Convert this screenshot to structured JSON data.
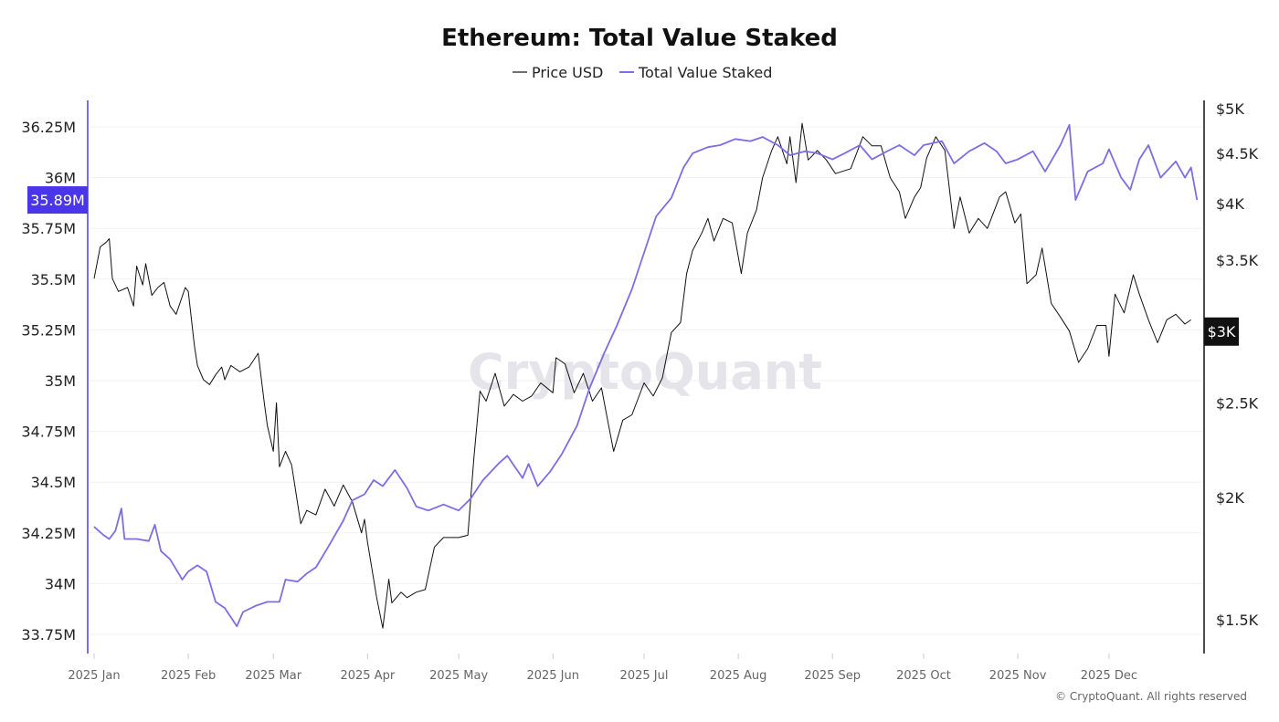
{
  "chart_data": {
    "type": "line",
    "title": "Ethereum: Total Value Staked",
    "legend": {
      "placement": "top-center",
      "entries": [
        "Price USD",
        "Total Value Staked"
      ]
    },
    "grid": true,
    "watermark": "CryptoQuant",
    "copyright": "© CryptoQuant. All rights reserved",
    "x_ticks": [
      "2025 Jan",
      "2025 Feb",
      "2025 Mar",
      "2025 Apr",
      "2025 May",
      "2025 Jun",
      "2025 Jul",
      "2025 Aug",
      "2025 Sep",
      "2025 Oct",
      "2025 Nov",
      "2025 Dec"
    ],
    "x_tick_dates": [
      "2025-01-01",
      "2025-02-01",
      "2025-03-01",
      "2025-04-01",
      "2025-05-01",
      "2025-06-01",
      "2025-07-01",
      "2025-08-01",
      "2025-09-01",
      "2025-10-01",
      "2025-11-01",
      "2025-12-01"
    ],
    "xlim": [
      "2025-01-01",
      "2025-12-31"
    ],
    "left_axis": {
      "unit": "M",
      "ylim": [
        33.7,
        36.4
      ],
      "ticks": [
        33.75,
        34,
        34.25,
        34.5,
        34.75,
        35,
        35.25,
        35.5,
        35.75,
        36,
        36.25
      ],
      "tick_labels": [
        "33.75M",
        "34M",
        "34.25M",
        "34.5M",
        "34.75M",
        "35M",
        "35.25M",
        "35.5M",
        "35.75M",
        "36M",
        "36.25M"
      ],
      "current_label": "35.89M",
      "color": "#7b6ee6",
      "badge_color": "#4a35e8"
    },
    "right_axis": {
      "scale": "log",
      "ylim": [
        1400,
        5200
      ],
      "ticks": [
        1500,
        2000,
        2500,
        3500,
        4000,
        4500,
        5000
      ],
      "tick_labels": [
        "$1.5K",
        "$2K",
        "$2.5K",
        "$3.5K",
        "$4K",
        "$4.5K",
        "$5K"
      ],
      "current_value": 2960,
      "current_label": "$3K",
      "color": "#111111"
    },
    "series": [
      {
        "name": "Price USD",
        "axis": "right",
        "color": "#111111",
        "points": [
          [
            "2025-01-01",
            3350
          ],
          [
            "2025-01-03",
            3610
          ],
          [
            "2025-01-05",
            3650
          ],
          [
            "2025-01-06",
            3680
          ],
          [
            "2025-01-07",
            3350
          ],
          [
            "2025-01-09",
            3250
          ],
          [
            "2025-01-12",
            3280
          ],
          [
            "2025-01-14",
            3140
          ],
          [
            "2025-01-15",
            3450
          ],
          [
            "2025-01-17",
            3300
          ],
          [
            "2025-01-18",
            3470
          ],
          [
            "2025-01-20",
            3220
          ],
          [
            "2025-01-22",
            3280
          ],
          [
            "2025-01-24",
            3320
          ],
          [
            "2025-01-26",
            3140
          ],
          [
            "2025-01-28",
            3080
          ],
          [
            "2025-01-31",
            3280
          ],
          [
            "2025-02-01",
            3250
          ],
          [
            "2025-02-03",
            2860
          ],
          [
            "2025-02-04",
            2730
          ],
          [
            "2025-02-06",
            2640
          ],
          [
            "2025-02-08",
            2610
          ],
          [
            "2025-02-10",
            2670
          ],
          [
            "2025-02-12",
            2720
          ],
          [
            "2025-02-13",
            2640
          ],
          [
            "2025-02-15",
            2730
          ],
          [
            "2025-02-18",
            2690
          ],
          [
            "2025-02-21",
            2720
          ],
          [
            "2025-02-24",
            2810
          ],
          [
            "2025-02-26",
            2500
          ],
          [
            "2025-02-27",
            2370
          ],
          [
            "2025-03-01",
            2230
          ],
          [
            "2025-03-02",
            2500
          ],
          [
            "2025-03-03",
            2150
          ],
          [
            "2025-03-05",
            2230
          ],
          [
            "2025-03-07",
            2160
          ],
          [
            "2025-03-10",
            1880
          ],
          [
            "2025-03-12",
            1940
          ],
          [
            "2025-03-15",
            1920
          ],
          [
            "2025-03-18",
            2040
          ],
          [
            "2025-03-21",
            1960
          ],
          [
            "2025-03-24",
            2060
          ],
          [
            "2025-03-27",
            1980
          ],
          [
            "2025-03-30",
            1840
          ],
          [
            "2025-03-31",
            1900
          ],
          [
            "2025-04-01",
            1800
          ],
          [
            "2025-04-04",
            1580
          ],
          [
            "2025-04-06",
            1470
          ],
          [
            "2025-04-08",
            1650
          ],
          [
            "2025-04-09",
            1560
          ],
          [
            "2025-04-12",
            1600
          ],
          [
            "2025-04-14",
            1580
          ],
          [
            "2025-04-17",
            1600
          ],
          [
            "2025-04-20",
            1610
          ],
          [
            "2025-04-23",
            1780
          ],
          [
            "2025-04-26",
            1820
          ],
          [
            "2025-04-29",
            1820
          ],
          [
            "2025-05-01",
            1820
          ],
          [
            "2025-05-04",
            1830
          ],
          [
            "2025-05-06",
            2200
          ],
          [
            "2025-05-08",
            2570
          ],
          [
            "2025-05-10",
            2510
          ],
          [
            "2025-05-13",
            2680
          ],
          [
            "2025-05-16",
            2480
          ],
          [
            "2025-05-19",
            2550
          ],
          [
            "2025-05-22",
            2510
          ],
          [
            "2025-05-25",
            2540
          ],
          [
            "2025-05-28",
            2620
          ],
          [
            "2025-06-01",
            2560
          ],
          [
            "2025-06-02",
            2780
          ],
          [
            "2025-06-05",
            2740
          ],
          [
            "2025-06-08",
            2560
          ],
          [
            "2025-06-11",
            2680
          ],
          [
            "2025-06-14",
            2510
          ],
          [
            "2025-06-17",
            2590
          ],
          [
            "2025-06-19",
            2400
          ],
          [
            "2025-06-21",
            2230
          ],
          [
            "2025-06-24",
            2400
          ],
          [
            "2025-06-27",
            2430
          ],
          [
            "2025-07-01",
            2620
          ],
          [
            "2025-07-04",
            2540
          ],
          [
            "2025-07-07",
            2650
          ],
          [
            "2025-07-10",
            2950
          ],
          [
            "2025-07-13",
            3020
          ],
          [
            "2025-07-15",
            3390
          ],
          [
            "2025-07-17",
            3580
          ],
          [
            "2025-07-20",
            3730
          ],
          [
            "2025-07-22",
            3860
          ],
          [
            "2025-07-24",
            3660
          ],
          [
            "2025-07-27",
            3860
          ],
          [
            "2025-07-30",
            3820
          ],
          [
            "2025-08-02",
            3390
          ],
          [
            "2025-08-04",
            3730
          ],
          [
            "2025-08-07",
            3940
          ],
          [
            "2025-08-09",
            4250
          ],
          [
            "2025-08-12",
            4530
          ],
          [
            "2025-08-14",
            4680
          ],
          [
            "2025-08-17",
            4390
          ],
          [
            "2025-08-18",
            4680
          ],
          [
            "2025-08-20",
            4200
          ],
          [
            "2025-08-22",
            4830
          ],
          [
            "2025-08-24",
            4430
          ],
          [
            "2025-08-27",
            4530
          ],
          [
            "2025-08-30",
            4430
          ],
          [
            "2025-09-02",
            4290
          ],
          [
            "2025-09-07",
            4340
          ],
          [
            "2025-09-11",
            4680
          ],
          [
            "2025-09-14",
            4580
          ],
          [
            "2025-09-17",
            4580
          ],
          [
            "2025-09-20",
            4250
          ],
          [
            "2025-09-23",
            4110
          ],
          [
            "2025-09-25",
            3860
          ],
          [
            "2025-09-28",
            4060
          ],
          [
            "2025-09-30",
            4150
          ],
          [
            "2025-10-02",
            4450
          ],
          [
            "2025-10-05",
            4680
          ],
          [
            "2025-10-08",
            4530
          ],
          [
            "2025-10-11",
            3770
          ],
          [
            "2025-10-13",
            4060
          ],
          [
            "2025-10-16",
            3730
          ],
          [
            "2025-10-19",
            3860
          ],
          [
            "2025-10-22",
            3770
          ],
          [
            "2025-10-26",
            4060
          ],
          [
            "2025-10-28",
            4110
          ],
          [
            "2025-10-31",
            3820
          ],
          [
            "2025-11-02",
            3900
          ],
          [
            "2025-11-04",
            3310
          ],
          [
            "2025-11-07",
            3380
          ],
          [
            "2025-11-09",
            3600
          ],
          [
            "2025-11-12",
            3160
          ],
          [
            "2025-11-15",
            3060
          ],
          [
            "2025-11-18",
            2960
          ],
          [
            "2025-11-21",
            2750
          ],
          [
            "2025-11-24",
            2840
          ],
          [
            "2025-11-27",
            3000
          ],
          [
            "2025-11-30",
            3000
          ],
          [
            "2025-12-01",
            2790
          ],
          [
            "2025-12-03",
            3230
          ],
          [
            "2025-12-06",
            3090
          ],
          [
            "2025-12-09",
            3380
          ],
          [
            "2025-12-11",
            3230
          ],
          [
            "2025-12-14",
            3040
          ],
          [
            "2025-12-17",
            2880
          ],
          [
            "2025-12-20",
            3040
          ],
          [
            "2025-12-23",
            3080
          ],
          [
            "2025-12-26",
            3010
          ],
          [
            "2025-12-28",
            3040
          ]
        ]
      },
      {
        "name": "Total Value Staked",
        "axis": "left",
        "color": "#7b6ee6",
        "unit": "M",
        "points": [
          [
            "2025-01-01",
            34.28
          ],
          [
            "2025-01-04",
            34.24
          ],
          [
            "2025-01-06",
            34.22
          ],
          [
            "2025-01-08",
            34.26
          ],
          [
            "2025-01-10",
            34.37
          ],
          [
            "2025-01-11",
            34.22
          ],
          [
            "2025-01-15",
            34.22
          ],
          [
            "2025-01-19",
            34.21
          ],
          [
            "2025-01-21",
            34.29
          ],
          [
            "2025-01-23",
            34.16
          ],
          [
            "2025-01-26",
            34.12
          ],
          [
            "2025-01-30",
            34.02
          ],
          [
            "2025-02-01",
            34.06
          ],
          [
            "2025-02-04",
            34.09
          ],
          [
            "2025-02-07",
            34.06
          ],
          [
            "2025-02-10",
            33.91
          ],
          [
            "2025-02-13",
            33.88
          ],
          [
            "2025-02-17",
            33.79
          ],
          [
            "2025-02-19",
            33.86
          ],
          [
            "2025-02-23",
            33.89
          ],
          [
            "2025-02-27",
            33.91
          ],
          [
            "2025-03-03",
            33.91
          ],
          [
            "2025-03-05",
            34.02
          ],
          [
            "2025-03-09",
            34.01
          ],
          [
            "2025-03-12",
            34.05
          ],
          [
            "2025-03-15",
            34.08
          ],
          [
            "2025-03-19",
            34.18
          ],
          [
            "2025-03-24",
            34.31
          ],
          [
            "2025-03-27",
            34.41
          ],
          [
            "2025-03-31",
            34.44
          ],
          [
            "2025-04-03",
            34.51
          ],
          [
            "2025-04-06",
            34.48
          ],
          [
            "2025-04-10",
            34.56
          ],
          [
            "2025-04-14",
            34.47
          ],
          [
            "2025-04-17",
            34.38
          ],
          [
            "2025-04-21",
            34.36
          ],
          [
            "2025-04-26",
            34.39
          ],
          [
            "2025-05-01",
            34.36
          ],
          [
            "2025-05-05",
            34.42
          ],
          [
            "2025-05-09",
            34.51
          ],
          [
            "2025-05-14",
            34.59
          ],
          [
            "2025-05-17",
            34.63
          ],
          [
            "2025-05-22",
            34.52
          ],
          [
            "2025-05-24",
            34.59
          ],
          [
            "2025-05-27",
            34.48
          ],
          [
            "2025-05-31",
            34.55
          ],
          [
            "2025-06-04",
            34.64
          ],
          [
            "2025-06-09",
            34.78
          ],
          [
            "2025-06-13",
            34.96
          ],
          [
            "2025-06-18",
            35.14
          ],
          [
            "2025-06-22",
            35.27
          ],
          [
            "2025-06-27",
            35.45
          ],
          [
            "2025-07-01",
            35.63
          ],
          [
            "2025-07-05",
            35.81
          ],
          [
            "2025-07-10",
            35.9
          ],
          [
            "2025-07-14",
            36.05
          ],
          [
            "2025-07-17",
            36.12
          ],
          [
            "2025-07-22",
            36.15
          ],
          [
            "2025-07-26",
            36.16
          ],
          [
            "2025-07-31",
            36.19
          ],
          [
            "2025-08-05",
            36.18
          ],
          [
            "2025-08-09",
            36.2
          ],
          [
            "2025-08-14",
            36.16
          ],
          [
            "2025-08-18",
            36.11
          ],
          [
            "2025-08-23",
            36.13
          ],
          [
            "2025-08-27",
            36.12
          ],
          [
            "2025-09-01",
            36.09
          ],
          [
            "2025-09-05",
            36.12
          ],
          [
            "2025-09-10",
            36.16
          ],
          [
            "2025-09-14",
            36.09
          ],
          [
            "2025-09-19",
            36.13
          ],
          [
            "2025-09-23",
            36.16
          ],
          [
            "2025-09-28",
            36.11
          ],
          [
            "2025-10-01",
            36.16
          ],
          [
            "2025-10-07",
            36.18
          ],
          [
            "2025-10-11",
            36.07
          ],
          [
            "2025-10-16",
            36.13
          ],
          [
            "2025-10-21",
            36.17
          ],
          [
            "2025-10-25",
            36.13
          ],
          [
            "2025-10-28",
            36.07
          ],
          [
            "2025-11-01",
            36.09
          ],
          [
            "2025-11-06",
            36.13
          ],
          [
            "2025-11-10",
            36.03
          ],
          [
            "2025-11-15",
            36.16
          ],
          [
            "2025-11-18",
            36.26
          ],
          [
            "2025-11-20",
            35.89
          ],
          [
            "2025-11-24",
            36.03
          ],
          [
            "2025-11-29",
            36.07
          ],
          [
            "2025-12-01",
            36.14
          ],
          [
            "2025-12-05",
            36.0
          ],
          [
            "2025-12-08",
            35.94
          ],
          [
            "2025-12-11",
            36.09
          ],
          [
            "2025-12-14",
            36.16
          ],
          [
            "2025-12-18",
            36.0
          ],
          [
            "2025-12-23",
            36.08
          ],
          [
            "2025-12-26",
            36.0
          ],
          [
            "2025-12-28",
            36.05
          ],
          [
            "2025-12-30",
            35.89
          ]
        ]
      }
    ]
  }
}
